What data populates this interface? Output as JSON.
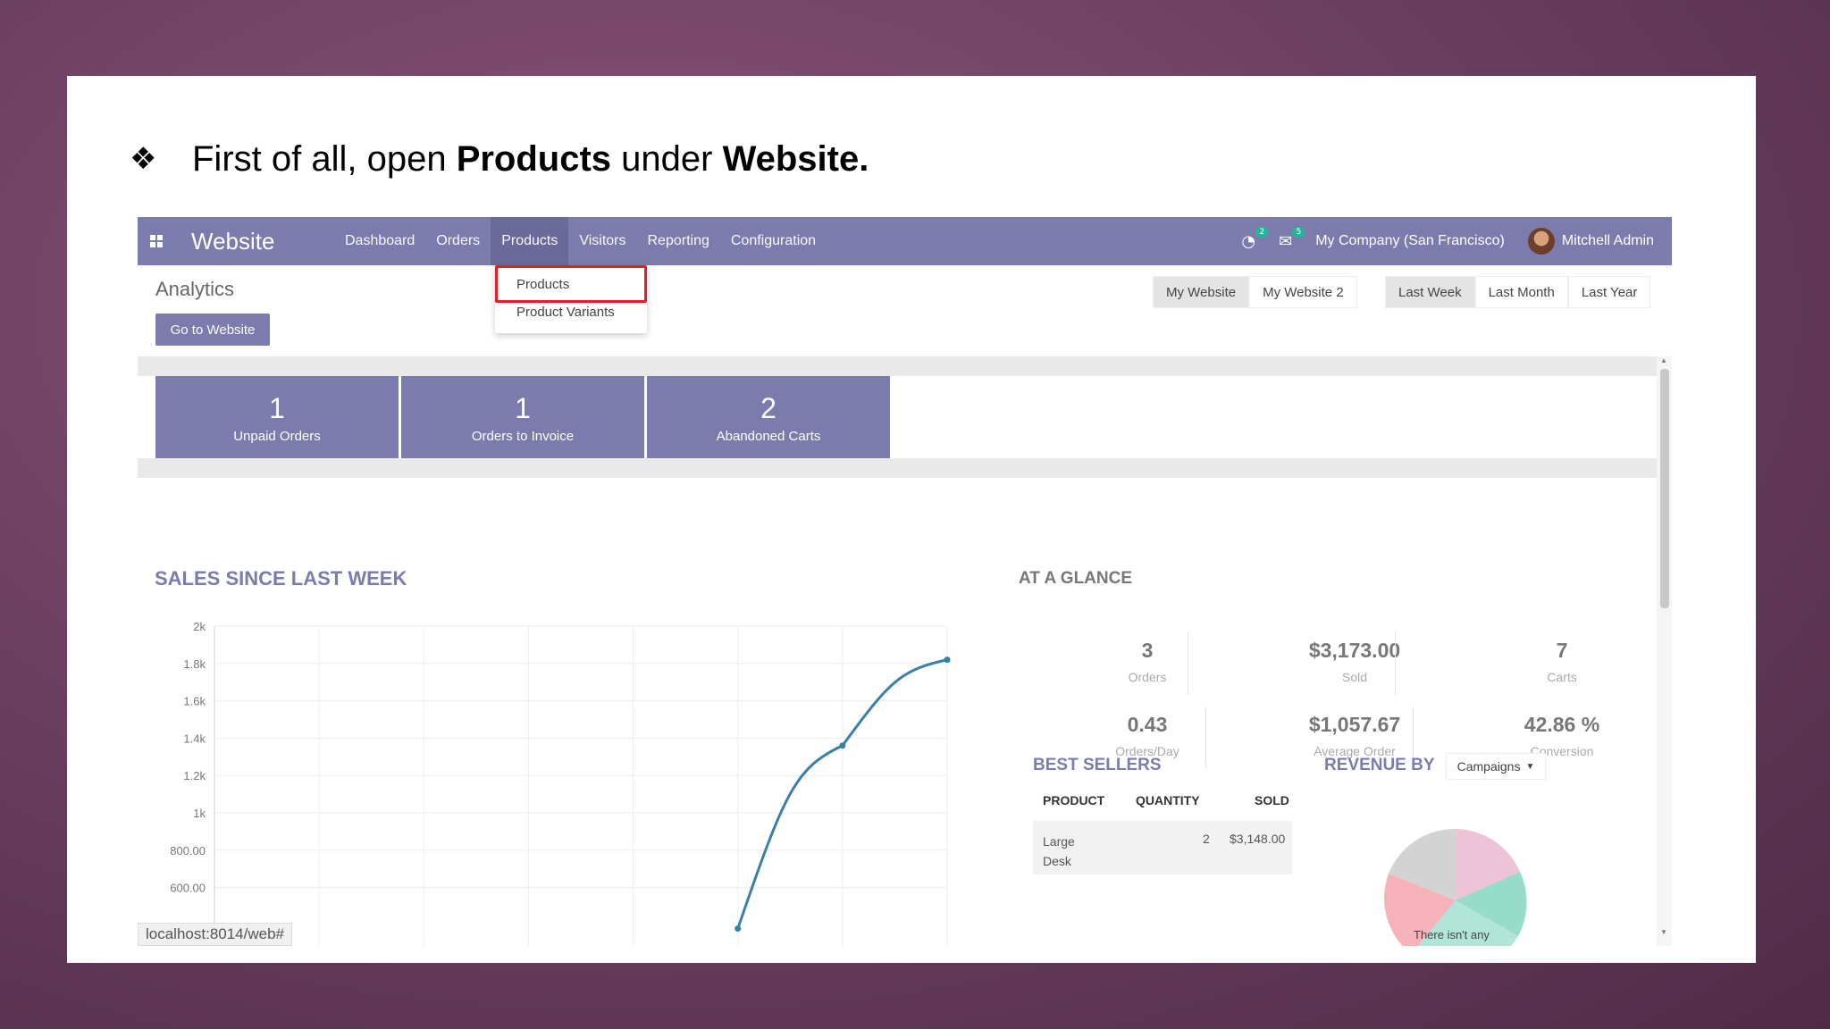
{
  "slide": {
    "bullet_glyph": "❖",
    "text_1": "First of all, open ",
    "text_bold_1": "Products",
    "text_2": " under ",
    "text_bold_2": "Website."
  },
  "navbar": {
    "brand": "Website",
    "menu": [
      "Dashboard",
      "Orders",
      "Products",
      "Visitors",
      "Reporting",
      "Configuration"
    ],
    "active_menu": "Products",
    "activity_badge": "2",
    "messages_badge": "5",
    "company": "My Company (San Francisco)",
    "user": "Mitchell Admin"
  },
  "dropdown": {
    "items": [
      "Products",
      "Product Variants"
    ],
    "highlighted": "Products"
  },
  "control_panel": {
    "title": "Analytics",
    "go_button": "Go to Website",
    "website_filters": [
      "My Website",
      "My Website 2"
    ],
    "period_filters": [
      "Last Week",
      "Last Month",
      "Last Year"
    ]
  },
  "kpis": [
    {
      "value": "1",
      "label": "Unpaid Orders"
    },
    {
      "value": "1",
      "label": "Orders to Invoice"
    },
    {
      "value": "2",
      "label": "Abandoned Carts"
    }
  ],
  "sales": {
    "title": "SALES SINCE LAST WEEK"
  },
  "glance": {
    "title": "AT A GLANCE",
    "stats": [
      {
        "value": "3",
        "label": "Orders"
      },
      {
        "value": "$3,173.00",
        "label": "Sold"
      },
      {
        "value": "7",
        "label": "Carts"
      },
      {
        "value": "0.43",
        "label": "Orders/Day"
      },
      {
        "value": "$1,057.67",
        "label": "Average Order"
      },
      {
        "value": "42.86 %",
        "label": "Conversion"
      }
    ]
  },
  "best_sellers": {
    "title": "BEST SELLERS",
    "columns": [
      "PRODUCT",
      "QUANTITY",
      "SOLD"
    ],
    "rows": [
      {
        "product": "Large Desk",
        "quantity": "2",
        "sold": "$3,148.00"
      }
    ]
  },
  "revenue": {
    "title": "REVENUE BY",
    "dropdown": "Campaigns",
    "note": "There isn't any"
  },
  "status_url": "localhost:8014/web#",
  "chart_data": {
    "type": "line",
    "yticks": [
      "2k",
      "1.8k",
      "1.6k",
      "1.4k",
      "1.2k",
      "1k",
      "800.00",
      "600.00"
    ],
    "ylim": [
      600,
      2000
    ],
    "x": [
      0,
      1,
      2,
      3,
      4,
      5,
      6,
      7
    ],
    "y": [
      null,
      null,
      null,
      null,
      null,
      380,
      1360,
      1820
    ],
    "line_color": "#3b7ea8"
  },
  "colors": {
    "navbar": "#7c7bad",
    "accent": "#7c7bad",
    "highlight_box": "#e0202a"
  }
}
